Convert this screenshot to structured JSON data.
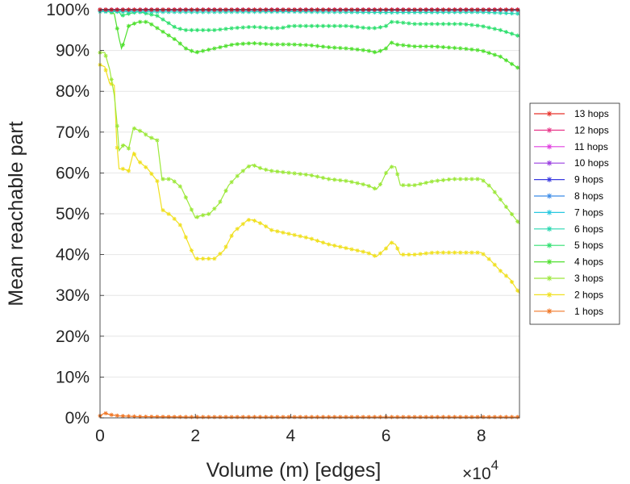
{
  "chart_data": {
    "type": "line",
    "xlabel": "Volume (m) [edges]",
    "ylabel": "Mean reachable part",
    "x_multiplier_label": "×10",
    "x_multiplier_exp": "4",
    "xlim": [
      0,
      88000
    ],
    "ylim": [
      0,
      100
    ],
    "xticks": [
      0,
      20000,
      40000,
      60000,
      80000
    ],
    "xtick_labels": [
      "0",
      "2",
      "4",
      "6",
      "8"
    ],
    "yticks": [
      0,
      10,
      20,
      30,
      40,
      50,
      60,
      70,
      80,
      90,
      100
    ],
    "ytick_labels": [
      "0%",
      "10%",
      "20%",
      "30%",
      "40%",
      "50%",
      "60%",
      "70%",
      "80%",
      "90%",
      "100%"
    ],
    "grid": true,
    "legend_position": "right",
    "series": [
      {
        "name": "13 hops",
        "color": "#e8312a",
        "x": [
          0,
          88000
        ],
        "y": [
          100,
          100
        ]
      },
      {
        "name": "12 hops",
        "color": "#e83a8c",
        "x": [
          0,
          88000
        ],
        "y": [
          100,
          100
        ]
      },
      {
        "name": "11 hops",
        "color": "#e040e0",
        "x": [
          0,
          88000
        ],
        "y": [
          100,
          100
        ]
      },
      {
        "name": "10 hops",
        "color": "#9a3fe0",
        "x": [
          0,
          88000
        ],
        "y": [
          100,
          100
        ]
      },
      {
        "name": "9 hops",
        "color": "#3a3ae0",
        "x": [
          0,
          88000
        ],
        "y": [
          100,
          100
        ]
      },
      {
        "name": "8 hops",
        "color": "#3a8ae8",
        "x": [
          0,
          88000
        ],
        "y": [
          100,
          100
        ]
      },
      {
        "name": "7 hops",
        "color": "#28c8e0",
        "x": [
          0,
          88000
        ],
        "y": [
          99.8,
          99.8
        ]
      },
      {
        "name": "6 hops",
        "color": "#28d8b0",
        "x": [
          0,
          20000,
          40000,
          60000,
          80000,
          88000
        ],
        "y": [
          99.5,
          99.4,
          99.5,
          99.3,
          99.4,
          99.0
        ]
      },
      {
        "name": "5 hops",
        "color": "#30e070",
        "x": [
          0,
          2000,
          4000,
          4500,
          6000,
          8000,
          10000,
          12000,
          14000,
          16000,
          18000,
          20000,
          24000,
          28000,
          32000,
          36000,
          38000,
          40000,
          44000,
          48000,
          52000,
          56000,
          58000,
          60000,
          61000,
          62000,
          66000,
          70000,
          76000,
          80000,
          84000,
          88000
        ],
        "y": [
          100,
          100,
          99.5,
          98.5,
          99,
          99.5,
          99,
          98.5,
          97,
          95.5,
          95,
          95,
          95,
          95.5,
          95.8,
          95.5,
          95.5,
          96,
          96,
          96,
          96,
          95.5,
          95.5,
          96,
          97,
          97,
          96.5,
          96.5,
          96.5,
          96,
          95,
          93.5
        ]
      },
      {
        "name": "4 hops",
        "color": "#50e030",
        "x": [
          0,
          2000,
          3000,
          4000,
          4500,
          5000,
          6000,
          8000,
          10000,
          12000,
          14000,
          16000,
          18000,
          20000,
          24000,
          28000,
          32000,
          36000,
          40000,
          44000,
          48000,
          52000,
          56000,
          58000,
          60000,
          61000,
          62000,
          66000,
          70000,
          76000,
          80000,
          84000,
          88000
        ],
        "y": [
          100,
          99.5,
          99,
          93,
          90.5,
          92,
          96,
          97,
          97,
          95.5,
          94,
          92.5,
          90.5,
          89.5,
          90.5,
          91.5,
          91.8,
          91.5,
          91.5,
          91.3,
          90.8,
          90.5,
          90,
          89.5,
          90.5,
          92,
          91.5,
          91,
          91,
          90.5,
          90,
          88.5,
          85.5
        ]
      },
      {
        "name": "3 hops",
        "color": "#9ce83a",
        "x": [
          0,
          1000,
          2000,
          3000,
          3500,
          4000,
          5000,
          6000,
          7000,
          8000,
          9000,
          10000,
          11000,
          12000,
          13000,
          15000,
          17000,
          19000,
          20000,
          21000,
          23000,
          25000,
          27000,
          29000,
          31000,
          32000,
          34000,
          36000,
          40000,
          44000,
          48000,
          52000,
          56000,
          58000,
          59000,
          60000,
          61000,
          62000,
          63000,
          66000,
          70000,
          74000,
          78000,
          80000,
          82000,
          84000,
          86000,
          88000
        ],
        "y": [
          89.5,
          89.5,
          85.5,
          79,
          73,
          65.5,
          67,
          66,
          71,
          70.5,
          70,
          69,
          68.5,
          68,
          58.5,
          58.5,
          56.5,
          51.5,
          49,
          49.5,
          50,
          52.5,
          57,
          59.5,
          61.5,
          62,
          61,
          60.5,
          60,
          59.5,
          58.5,
          58,
          57,
          56,
          57.5,
          60,
          61.5,
          61.5,
          57,
          57,
          58,
          58.5,
          58.5,
          58.5,
          56.5,
          53.5,
          50.5,
          47.5
        ]
      },
      {
        "name": "2 hops",
        "color": "#f0e020",
        "x": [
          0,
          1000,
          2000,
          3000,
          3500,
          4000,
          5000,
          6000,
          7000,
          8000,
          10000,
          12000,
          13000,
          15000,
          17000,
          19000,
          20000,
          22000,
          24000,
          26000,
          28000,
          30000,
          31000,
          32000,
          34000,
          36000,
          40000,
          44000,
          48000,
          52000,
          56000,
          58000,
          60000,
          61000,
          62000,
          63000,
          66000,
          70000,
          74000,
          78000,
          80000,
          82000,
          84000,
          86000,
          88000
        ],
        "y": [
          86.5,
          86,
          82,
          81.5,
          67.5,
          61,
          61,
          60.5,
          65,
          63,
          61,
          58,
          51,
          49.5,
          47,
          41.5,
          39,
          39,
          39,
          41,
          45.5,
          47.5,
          48.5,
          48.5,
          47.5,
          46,
          45,
          44,
          42.5,
          41.5,
          40.5,
          39.5,
          41.5,
          43,
          42.5,
          40,
          40,
          40.5,
          40.5,
          40.5,
          40.5,
          38.5,
          36,
          34,
          30.5
        ]
      },
      {
        "name": "1 hops",
        "color": "#f07828",
        "x": [
          0,
          1000,
          2000,
          4000,
          8000,
          20000,
          40000,
          60000,
          80000,
          88000
        ],
        "y": [
          0.5,
          1.2,
          0.8,
          0.5,
          0.3,
          0.2,
          0.2,
          0.2,
          0.2,
          0.2
        ]
      }
    ]
  }
}
